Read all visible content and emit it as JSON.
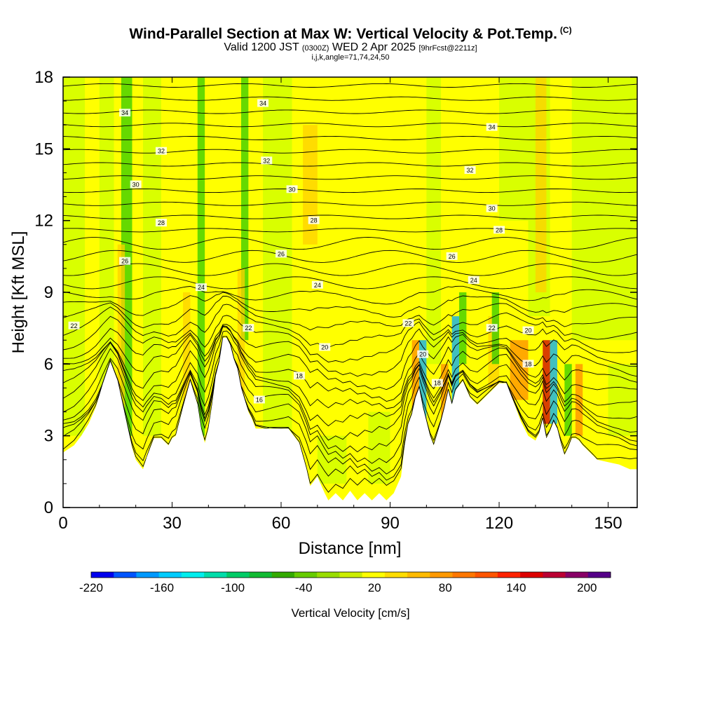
{
  "header": {
    "title": "Wind-Parallel Section at Max W: Vertical Velocity & Pot.Temp.",
    "copyright": "(C)",
    "valid_prefix": "Valid 1200 JST",
    "valid_utc": "(0300Z)",
    "valid_date": "WED 2 Apr 2025",
    "forecast_info": "[9hrFcst@2211z]",
    "grid_info": "i,j,k,angle=71,74,24,50"
  },
  "colors": {
    "background_field": "#ffff00",
    "updraft_light": "#ffd000",
    "updraft_mid": "#ff8c00",
    "updraft_strong": "#cc0000",
    "downdraft_light": "#ccff00",
    "downdraft_mid": "#33cc00",
    "downdraft_strong": "#00aaff",
    "terrain": "#ffffff",
    "contour": "#000000"
  },
  "chart_data": {
    "type": "heatmap",
    "xlabel": "Distance [nm]",
    "ylabel": "Height [Kft MSL]",
    "xlim": [
      0,
      158
    ],
    "ylim": [
      0,
      18
    ],
    "xticks": [
      0,
      30,
      60,
      90,
      120,
      150
    ],
    "yticks": [
      0,
      3,
      6,
      9,
      12,
      15,
      18
    ],
    "field": "Vertical Velocity",
    "contour_field": "Potential Temperature",
    "contour_labels": [
      "34",
      "32",
      "30",
      "28",
      "26",
      "24",
      "22",
      "20",
      "18",
      "16"
    ],
    "terrain_profile": {
      "x": [
        0,
        3,
        5,
        7,
        9,
        11,
        13,
        15,
        17,
        19,
        20,
        22,
        23,
        25,
        27,
        29,
        30,
        31,
        33,
        35,
        37,
        38,
        39,
        40,
        41,
        42,
        43,
        44,
        45,
        46,
        47,
        48,
        49,
        50,
        51,
        52,
        53,
        55,
        58,
        60,
        62,
        65,
        67,
        68,
        70,
        72,
        73,
        75,
        77,
        79,
        81,
        83,
        85,
        87,
        89,
        91,
        93,
        94,
        95,
        96,
        97,
        98,
        99,
        100,
        101,
        102,
        103,
        104,
        105,
        106,
        107,
        108,
        110,
        112,
        114,
        116,
        118,
        120,
        122,
        124,
        126,
        128,
        130,
        131,
        132,
        133,
        134,
        135,
        136,
        137,
        138,
        139,
        140,
        141,
        142,
        143,
        145,
        147,
        150,
        153,
        156,
        158
      ],
      "height": [
        2.3,
        2.6,
        3.0,
        3.5,
        4.2,
        5.2,
        6.1,
        5.3,
        3.9,
        2.5,
        2.0,
        1.6,
        2.1,
        2.9,
        2.9,
        2.6,
        2.9,
        3.0,
        4.2,
        5.3,
        4.3,
        3.3,
        2.7,
        3.3,
        4.3,
        5.5,
        6.1,
        7.1,
        7.1,
        6.8,
        6.2,
        5.8,
        5.0,
        4.5,
        4.0,
        3.7,
        3.3,
        3.3,
        3.3,
        3.3,
        3.3,
        2.7,
        1.6,
        0.9,
        1.3,
        0.6,
        0.3,
        0.6,
        0.3,
        0.7,
        0.3,
        0.6,
        0.3,
        0.6,
        0.3,
        0.6,
        1.3,
        2.6,
        3.5,
        3.9,
        4.6,
        5.0,
        4.2,
        3.6,
        3.0,
        2.6,
        3.1,
        3.6,
        4.2,
        4.9,
        4.3,
        4.9,
        5.3,
        4.6,
        4.3,
        4.6,
        4.9,
        5.2,
        5.2,
        4.4,
        3.6,
        3.0,
        2.8,
        3.1,
        3.7,
        2.9,
        3.2,
        3.6,
        3.3,
        2.7,
        2.2,
        2.5,
        2.9,
        2.9,
        2.8,
        2.6,
        2.3,
        2.0,
        1.9,
        1.8,
        1.6,
        1.6
      ]
    },
    "colorbar": {
      "label": "Vertical Velocity [cm/s]",
      "tick_labels": [
        "-220",
        "-160",
        "-100",
        "-40",
        "20",
        "80",
        "140",
        "200"
      ],
      "levels": [
        -220,
        -200,
        -180,
        -160,
        -140,
        -120,
        -100,
        -80,
        -60,
        -40,
        -20,
        0,
        20,
        40,
        60,
        80,
        100,
        120,
        140,
        160,
        180,
        200,
        220
      ],
      "colors": [
        "#0000ee",
        "#0055ff",
        "#0099ff",
        "#00ccff",
        "#00eeee",
        "#00ddaa",
        "#00cc66",
        "#11bb33",
        "#33aa00",
        "#66cc00",
        "#99dd00",
        "#ccee00",
        "#ffff00",
        "#ffdd00",
        "#ffbb00",
        "#ff9900",
        "#ff7700",
        "#ff5500",
        "#ff2200",
        "#dd0000",
        "#bb0033",
        "#880066",
        "#550088"
      ]
    }
  }
}
